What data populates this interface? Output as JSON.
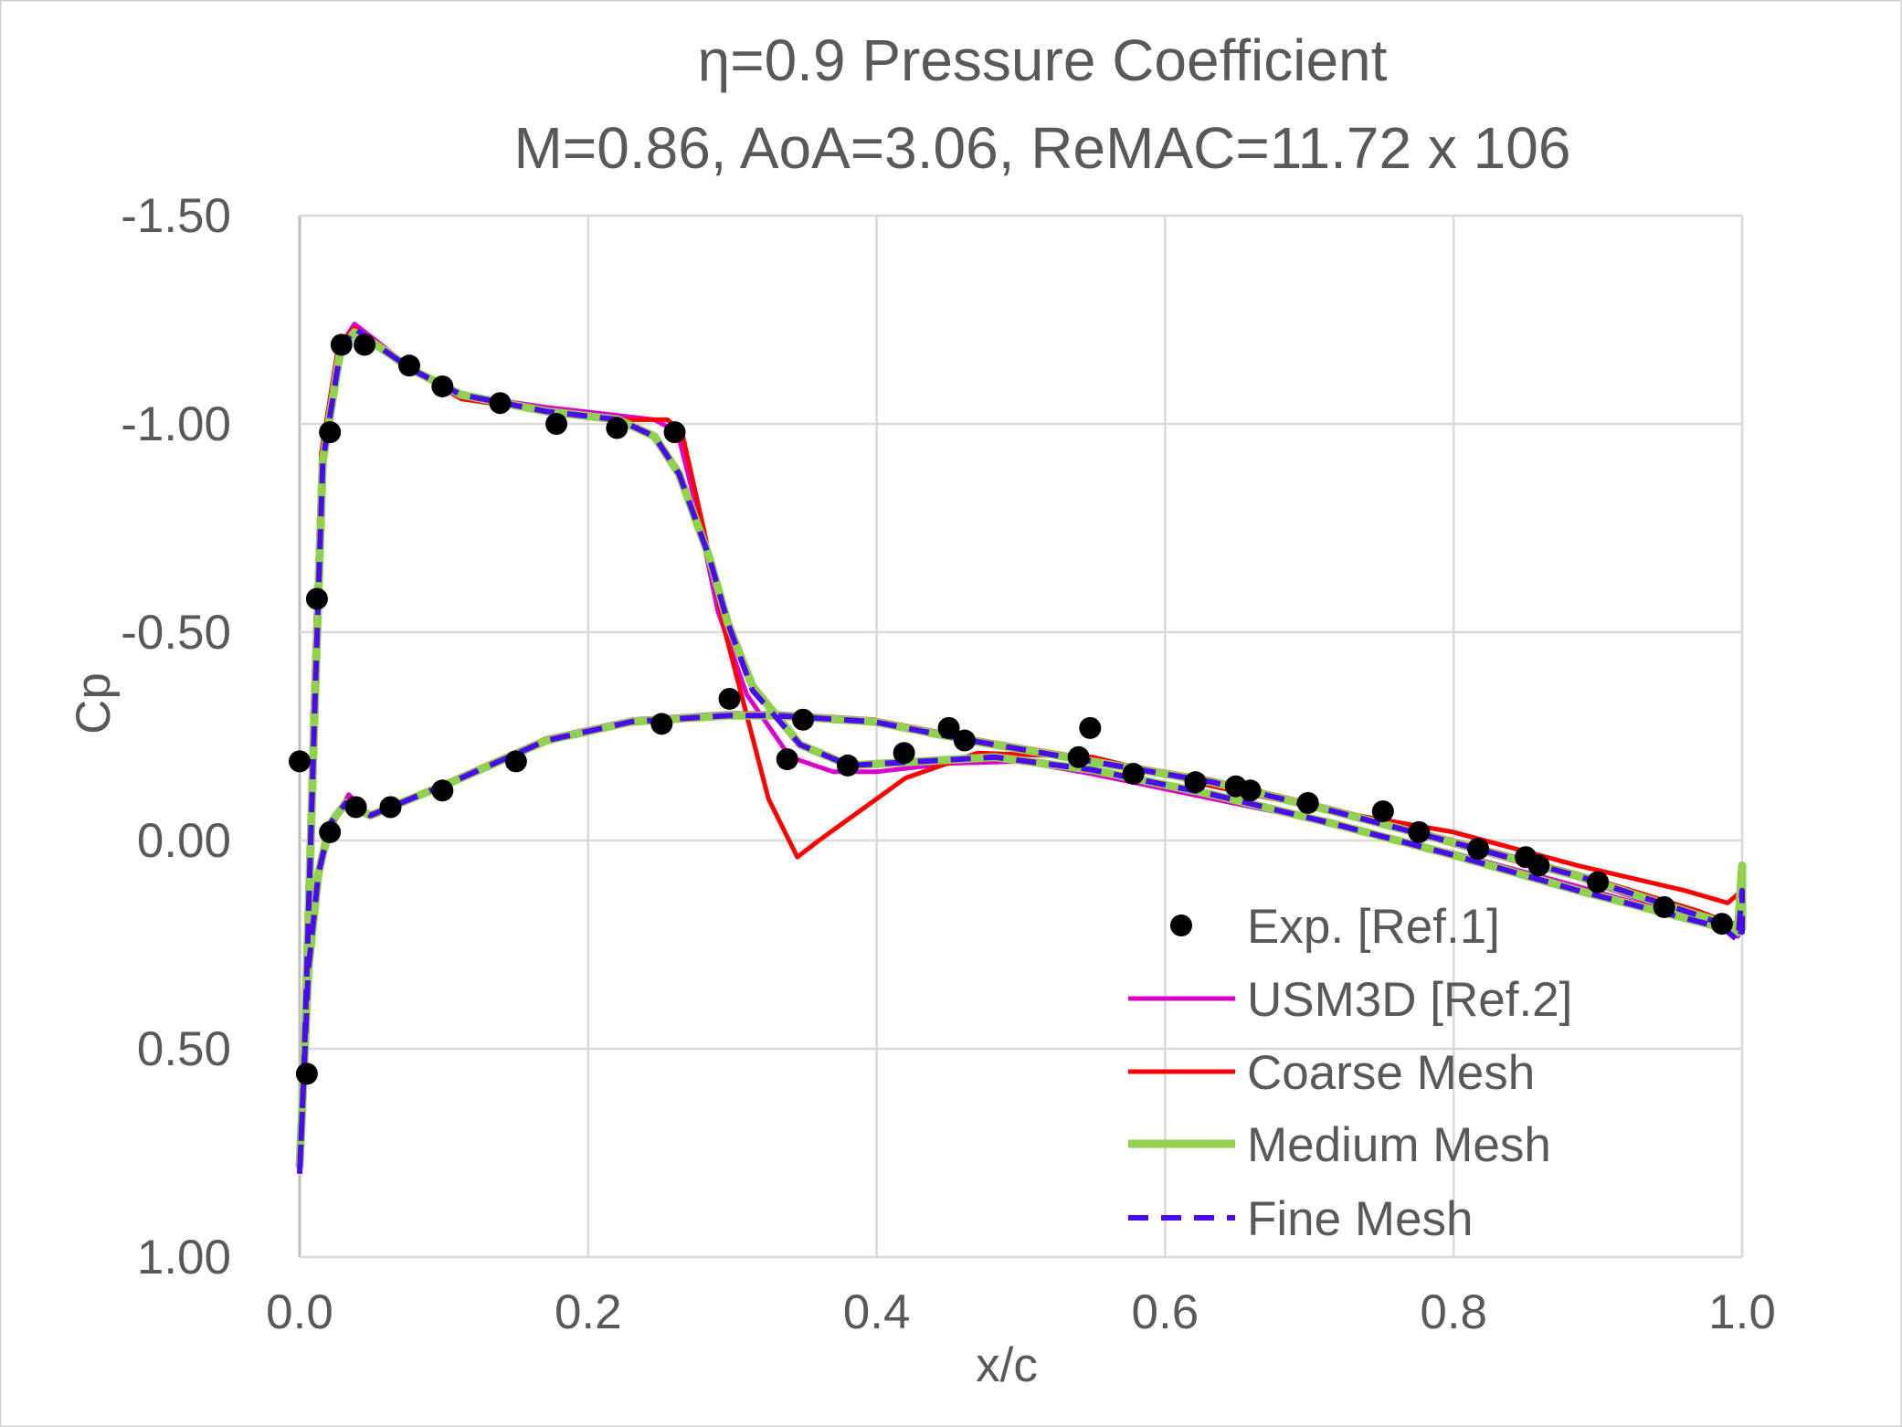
{
  "chart_data": {
    "type": "scatter",
    "title": "η=0.9 Pressure Coefficient",
    "subtitle": "M=0.86, AoA=3.06, ReMAC=11.72 x 106",
    "xlabel": "x/c",
    "ylabel": "Cp",
    "xlim": [
      0.0,
      1.0
    ],
    "ylim": [
      -1.5,
      1.0
    ],
    "y_reversed": true,
    "grid": true,
    "legend_position": "bottom-right",
    "xticks": [
      "0.0",
      "0.2",
      "0.4",
      "0.6",
      "0.8",
      "1.0"
    ],
    "xtick_values": [
      0,
      0.2,
      0.4,
      0.6,
      0.8,
      1.0
    ],
    "yticks": [
      "-1.50",
      "-1.00",
      "-0.50",
      "0.00",
      "0.50",
      "1.00"
    ],
    "ytick_values": [
      -1.5,
      -1.0,
      -0.5,
      0.0,
      0.5,
      1.0
    ],
    "series": [
      {
        "name": "Exp. [Ref.1]",
        "kind": "markers",
        "color": "#000000",
        "points": [
          [
            0.0,
            -0.19
          ],
          [
            0.005,
            0.56
          ],
          [
            0.012,
            -0.58
          ],
          [
            0.021,
            -0.02
          ],
          [
            0.021,
            -0.98
          ],
          [
            0.029,
            -1.19
          ],
          [
            0.039,
            -0.08
          ],
          [
            0.045,
            -1.19
          ],
          [
            0.063,
            -0.08
          ],
          [
            0.076,
            -1.14
          ],
          [
            0.099,
            -0.12
          ],
          [
            0.099,
            -1.09
          ],
          [
            0.139,
            -1.05
          ],
          [
            0.15,
            -0.19
          ],
          [
            0.178,
            -1.0
          ],
          [
            0.22,
            -0.99
          ],
          [
            0.251,
            -0.28
          ],
          [
            0.26,
            -0.98
          ],
          [
            0.298,
            -0.34
          ],
          [
            0.338,
            -0.195
          ],
          [
            0.349,
            -0.29
          ],
          [
            0.38,
            -0.18
          ],
          [
            0.419,
            -0.21
          ],
          [
            0.45,
            -0.27
          ],
          [
            0.461,
            -0.24
          ],
          [
            0.54,
            -0.2
          ],
          [
            0.548,
            -0.27
          ],
          [
            0.578,
            -0.16
          ],
          [
            0.621,
            -0.14
          ],
          [
            0.649,
            -0.13
          ],
          [
            0.659,
            -0.12
          ],
          [
            0.699,
            -0.09
          ],
          [
            0.751,
            -0.07
          ],
          [
            0.776,
            -0.02
          ],
          [
            0.817,
            0.02
          ],
          [
            0.85,
            0.04
          ],
          [
            0.859,
            0.06
          ],
          [
            0.9,
            0.1
          ],
          [
            0.946,
            0.16
          ],
          [
            0.986,
            0.2
          ]
        ]
      },
      {
        "name": "USM3D [Ref.2]",
        "kind": "line",
        "color": "#DD00CC",
        "points": [
          [
            0.0,
            0.78
          ],
          [
            0.003,
            0.5
          ],
          [
            0.009,
            -0.3
          ],
          [
            0.015,
            -0.92
          ],
          [
            0.027,
            -1.18
          ],
          [
            0.038,
            -1.24
          ],
          [
            0.053,
            -1.2
          ],
          [
            0.078,
            -1.13
          ],
          [
            0.112,
            -1.07
          ],
          [
            0.171,
            -1.04
          ],
          [
            0.221,
            -1.02
          ],
          [
            0.246,
            -1.01
          ],
          [
            0.262,
            -0.98
          ],
          [
            0.275,
            -0.8
          ],
          [
            0.29,
            -0.55
          ],
          [
            0.31,
            -0.35
          ],
          [
            0.34,
            -0.2
          ],
          [
            0.37,
            -0.165
          ],
          [
            0.4,
            -0.165
          ],
          [
            0.45,
            -0.185
          ],
          [
            0.5,
            -0.19
          ],
          [
            0.549,
            -0.16
          ],
          [
            0.633,
            -0.1
          ],
          [
            0.717,
            -0.04
          ],
          [
            0.8,
            0.03
          ],
          [
            0.886,
            0.11
          ],
          [
            0.987,
            0.21
          ],
          [
            0.997,
            0.23
          ],
          [
            1.0,
            0.2
          ],
          [
            0.97,
            0.19
          ],
          [
            0.886,
            0.09
          ],
          [
            0.8,
            0.01
          ],
          [
            0.717,
            -0.07
          ],
          [
            0.633,
            -0.14
          ],
          [
            0.549,
            -0.19
          ],
          [
            0.465,
            -0.245
          ],
          [
            0.398,
            -0.29
          ],
          [
            0.33,
            -0.305
          ],
          [
            0.297,
            -0.305
          ],
          [
            0.23,
            -0.29
          ],
          [
            0.171,
            -0.245
          ],
          [
            0.112,
            -0.15
          ],
          [
            0.07,
            -0.09
          ],
          [
            0.049,
            -0.06
          ],
          [
            0.034,
            -0.11
          ],
          [
            0.022,
            -0.03
          ],
          [
            0.013,
            0.09
          ],
          [
            0.006,
            0.32
          ],
          [
            0.0,
            0.78
          ]
        ]
      },
      {
        "name": "Coarse Mesh",
        "kind": "line",
        "color": "#FF0000",
        "points": [
          [
            0.0,
            0.78
          ],
          [
            0.003,
            0.52
          ],
          [
            0.009,
            -0.3
          ],
          [
            0.015,
            -0.93
          ],
          [
            0.027,
            -1.19
          ],
          [
            0.038,
            -1.23
          ],
          [
            0.053,
            -1.19
          ],
          [
            0.078,
            -1.13
          ],
          [
            0.112,
            -1.06
          ],
          [
            0.171,
            -1.03
          ],
          [
            0.221,
            -1.01
          ],
          [
            0.255,
            -1.01
          ],
          [
            0.265,
            -0.98
          ],
          [
            0.28,
            -0.75
          ],
          [
            0.295,
            -0.5
          ],
          [
            0.31,
            -0.3
          ],
          [
            0.325,
            -0.1
          ],
          [
            0.345,
            0.04
          ],
          [
            0.36,
            0.0
          ],
          [
            0.38,
            -0.05
          ],
          [
            0.42,
            -0.15
          ],
          [
            0.47,
            -0.21
          ],
          [
            0.55,
            -0.2
          ],
          [
            0.633,
            -0.13
          ],
          [
            0.717,
            -0.07
          ],
          [
            0.8,
            -0.02
          ],
          [
            0.886,
            0.06
          ],
          [
            0.96,
            0.12
          ],
          [
            0.99,
            0.15
          ],
          [
            1.0,
            0.12
          ],
          [
            1.0,
            0.21
          ],
          [
            0.97,
            0.17
          ],
          [
            0.886,
            0.08
          ],
          [
            0.8,
            0.0
          ],
          [
            0.717,
            -0.075
          ],
          [
            0.633,
            -0.145
          ],
          [
            0.549,
            -0.195
          ],
          [
            0.465,
            -0.245
          ],
          [
            0.398,
            -0.29
          ],
          [
            0.33,
            -0.3
          ],
          [
            0.297,
            -0.3
          ],
          [
            0.23,
            -0.285
          ],
          [
            0.171,
            -0.245
          ],
          [
            0.112,
            -0.155
          ],
          [
            0.07,
            -0.09
          ],
          [
            0.049,
            -0.06
          ],
          [
            0.032,
            -0.09
          ],
          [
            0.021,
            -0.04
          ],
          [
            0.013,
            0.08
          ],
          [
            0.006,
            0.31
          ],
          [
            0.0,
            0.78
          ]
        ]
      },
      {
        "name": "Medium Mesh",
        "kind": "line",
        "color": "#92D050",
        "points": [
          [
            0.0,
            0.78
          ],
          [
            0.003,
            0.55
          ],
          [
            0.01,
            -0.27
          ],
          [
            0.016,
            -0.91
          ],
          [
            0.028,
            -1.17
          ],
          [
            0.038,
            -1.22
          ],
          [
            0.053,
            -1.19
          ],
          [
            0.078,
            -1.13
          ],
          [
            0.112,
            -1.07
          ],
          [
            0.171,
            -1.03
          ],
          [
            0.221,
            -1.01
          ],
          [
            0.246,
            -0.97
          ],
          [
            0.263,
            -0.88
          ],
          [
            0.284,
            -0.68
          ],
          [
            0.297,
            -0.52
          ],
          [
            0.314,
            -0.37
          ],
          [
            0.347,
            -0.23
          ],
          [
            0.381,
            -0.18
          ],
          [
            0.431,
            -0.19
          ],
          [
            0.482,
            -0.2
          ],
          [
            0.549,
            -0.17
          ],
          [
            0.633,
            -0.11
          ],
          [
            0.717,
            -0.04
          ],
          [
            0.8,
            0.035
          ],
          [
            0.886,
            0.12
          ],
          [
            0.987,
            0.21
          ],
          [
            0.997,
            0.22
          ],
          [
            1.0,
            0.06
          ],
          [
            1.0,
            0.21
          ],
          [
            0.97,
            0.18
          ],
          [
            0.886,
            0.085
          ],
          [
            0.8,
            0.005
          ],
          [
            0.717,
            -0.07
          ],
          [
            0.633,
            -0.14
          ],
          [
            0.549,
            -0.19
          ],
          [
            0.465,
            -0.24
          ],
          [
            0.398,
            -0.285
          ],
          [
            0.33,
            -0.3
          ],
          [
            0.297,
            -0.3
          ],
          [
            0.23,
            -0.285
          ],
          [
            0.171,
            -0.24
          ],
          [
            0.112,
            -0.15
          ],
          [
            0.07,
            -0.09
          ],
          [
            0.049,
            -0.06
          ],
          [
            0.032,
            -0.09
          ],
          [
            0.021,
            -0.04
          ],
          [
            0.013,
            0.08
          ],
          [
            0.006,
            0.31
          ],
          [
            0.0,
            0.78
          ]
        ]
      },
      {
        "name": "Fine Mesh",
        "kind": "dashed-line",
        "color": "#4B0AF0",
        "points": [
          [
            0.0,
            0.8
          ],
          [
            0.003,
            0.55
          ],
          [
            0.01,
            -0.27
          ],
          [
            0.016,
            -0.91
          ],
          [
            0.028,
            -1.17
          ],
          [
            0.038,
            -1.23
          ],
          [
            0.053,
            -1.19
          ],
          [
            0.078,
            -1.13
          ],
          [
            0.112,
            -1.07
          ],
          [
            0.171,
            -1.03
          ],
          [
            0.221,
            -1.01
          ],
          [
            0.246,
            -0.97
          ],
          [
            0.263,
            -0.88
          ],
          [
            0.284,
            -0.68
          ],
          [
            0.297,
            -0.52
          ],
          [
            0.314,
            -0.36
          ],
          [
            0.347,
            -0.23
          ],
          [
            0.381,
            -0.18
          ],
          [
            0.431,
            -0.19
          ],
          [
            0.482,
            -0.2
          ],
          [
            0.549,
            -0.17
          ],
          [
            0.633,
            -0.11
          ],
          [
            0.717,
            -0.04
          ],
          [
            0.8,
            0.035
          ],
          [
            0.886,
            0.12
          ],
          [
            0.987,
            0.21
          ],
          [
            0.997,
            0.24
          ],
          [
            1.0,
            0.12
          ],
          [
            1.0,
            0.22
          ],
          [
            0.97,
            0.18
          ],
          [
            0.886,
            0.085
          ],
          [
            0.8,
            0.005
          ],
          [
            0.717,
            -0.07
          ],
          [
            0.633,
            -0.14
          ],
          [
            0.549,
            -0.19
          ],
          [
            0.465,
            -0.24
          ],
          [
            0.398,
            -0.285
          ],
          [
            0.33,
            -0.3
          ],
          [
            0.297,
            -0.3
          ],
          [
            0.23,
            -0.285
          ],
          [
            0.171,
            -0.24
          ],
          [
            0.112,
            -0.15
          ],
          [
            0.07,
            -0.09
          ],
          [
            0.049,
            -0.06
          ],
          [
            0.032,
            -0.09
          ],
          [
            0.021,
            -0.04
          ],
          [
            0.013,
            0.08
          ],
          [
            0.006,
            0.31
          ],
          [
            0.0,
            0.8
          ]
        ]
      }
    ]
  }
}
